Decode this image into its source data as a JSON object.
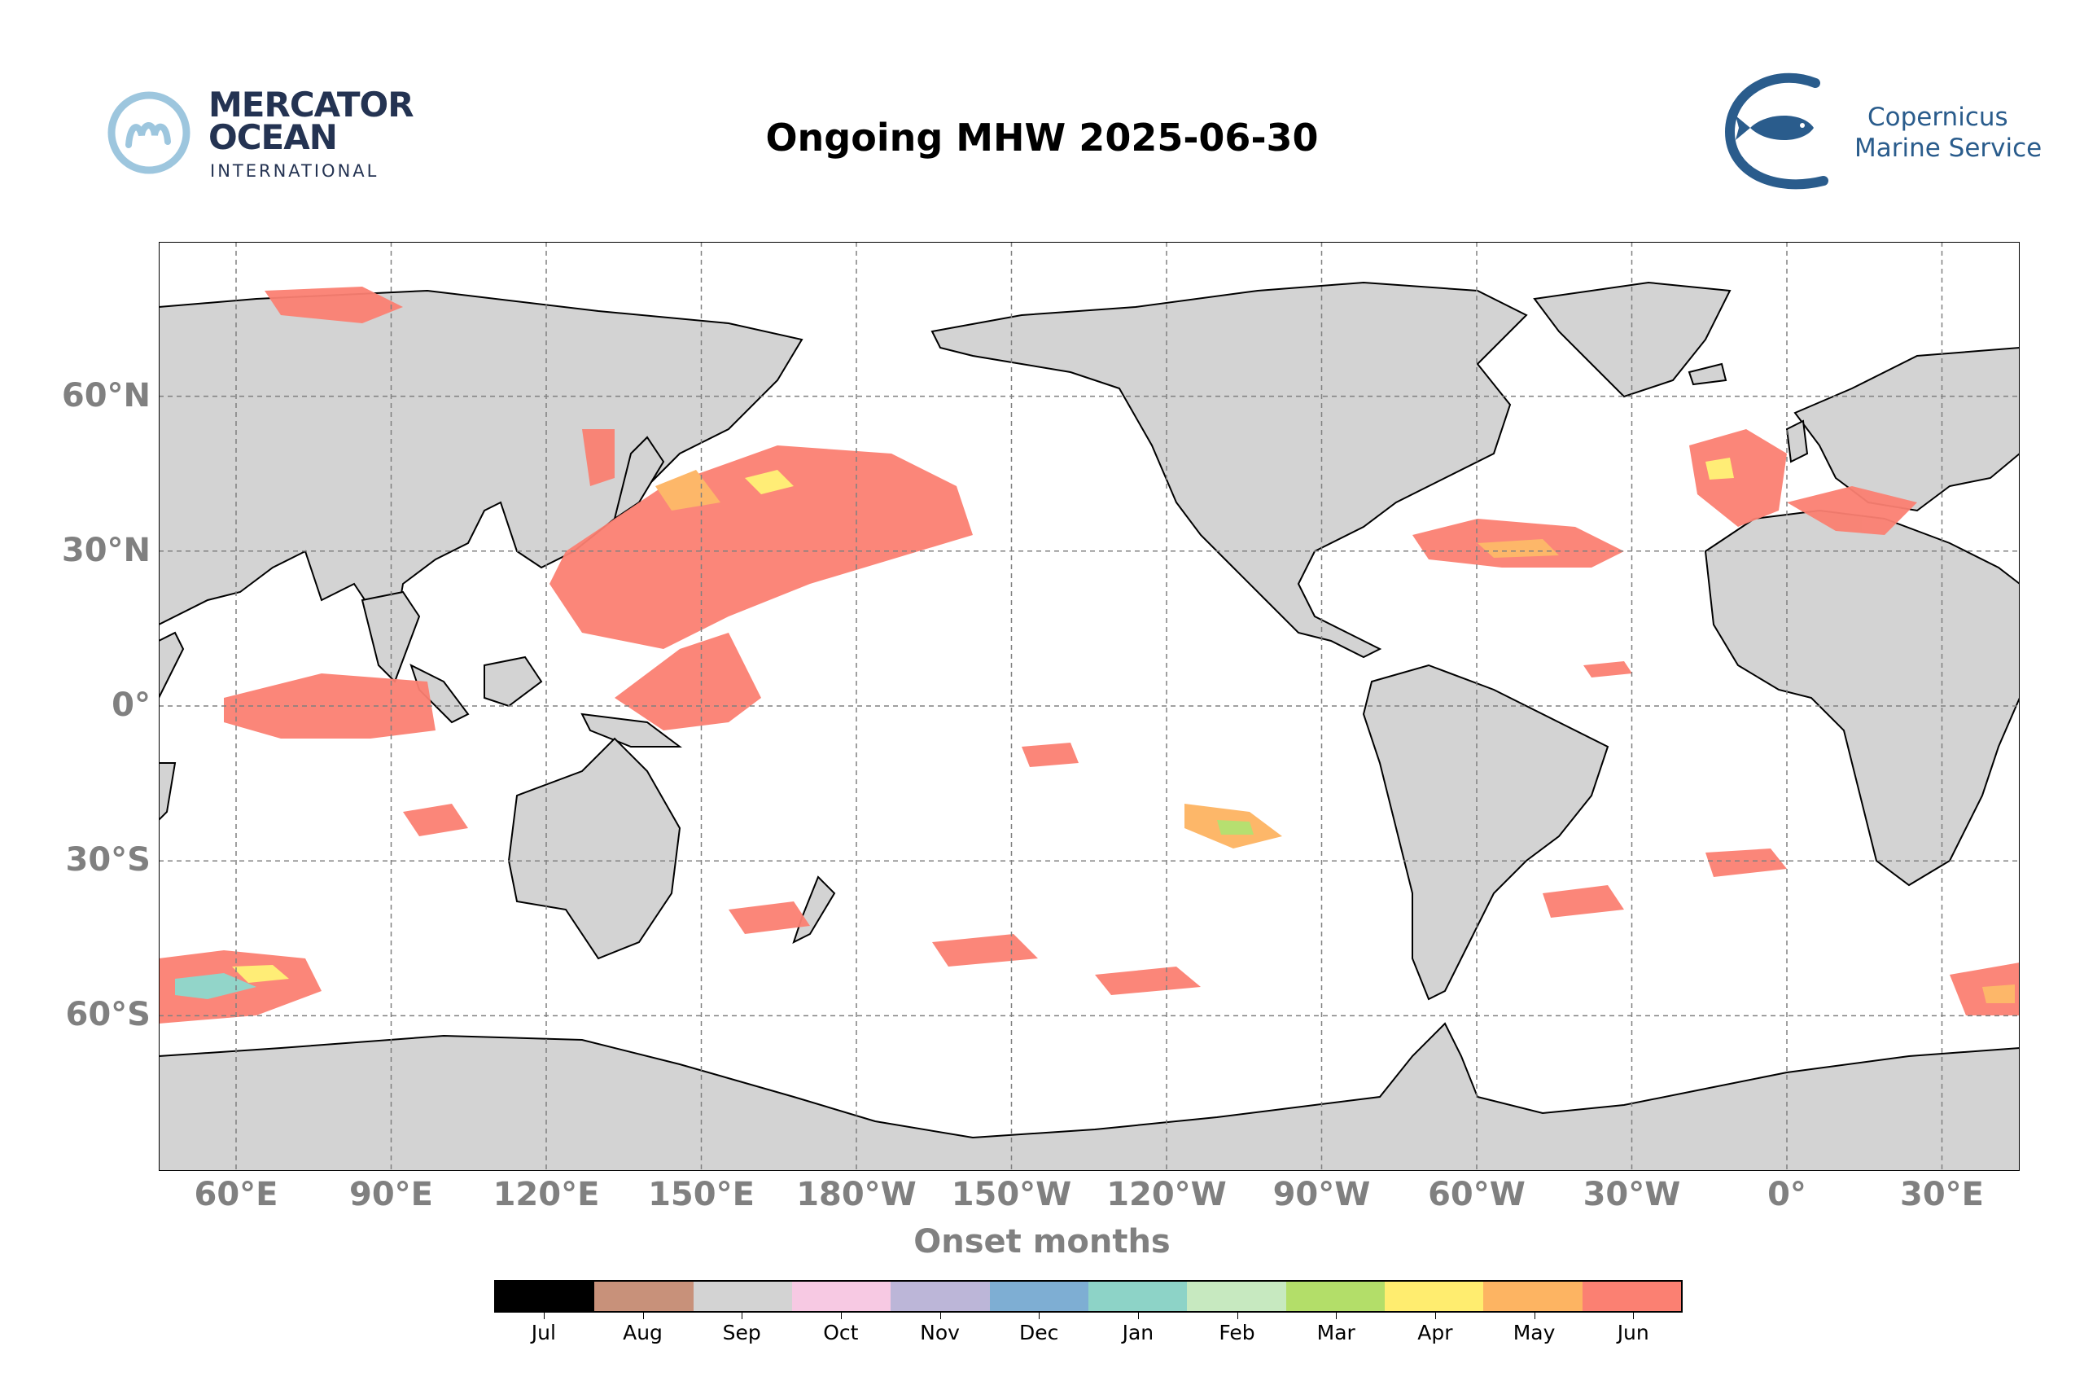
{
  "title": "Ongoing MHW 2025-06-30",
  "logos": {
    "left": {
      "line1": "MERCATOR",
      "line2": "OCEAN",
      "line3": "INTERNATIONAL"
    },
    "right": {
      "line1": "Copernicus",
      "line2": "Marine Service"
    }
  },
  "map": {
    "projection": "plate-carree",
    "central_longitude": -180,
    "lon_range": [
      45,
      405
    ],
    "lat_range": [
      -90,
      90
    ],
    "gridlines": true,
    "land_color": "#d3d3d3",
    "ocean_color": "#ffffff",
    "lon_ticks": [
      "60°E",
      "90°E",
      "120°E",
      "150°E",
      "180°W",
      "150°W",
      "120°W",
      "90°W",
      "60°W",
      "30°W",
      "0°",
      "30°E"
    ],
    "lat_ticks": [
      "60°N",
      "30°N",
      "0°",
      "30°S",
      "60°S"
    ]
  },
  "xlabel": "Onset months",
  "colorbar": {
    "labels": [
      "Jul",
      "Aug",
      "Sep",
      "Oct",
      "Nov",
      "Dec",
      "Jan",
      "Feb",
      "Mar",
      "Apr",
      "May",
      "Jun"
    ],
    "colors": [
      "#000000",
      "#c8917a",
      "#d3d3d3",
      "#f7c9e3",
      "#bcb6d8",
      "#7eaed3",
      "#8dd3c7",
      "#c7e9c0",
      "#b3de69",
      "#ffed6f",
      "#fdb462",
      "#fb8072"
    ]
  }
}
